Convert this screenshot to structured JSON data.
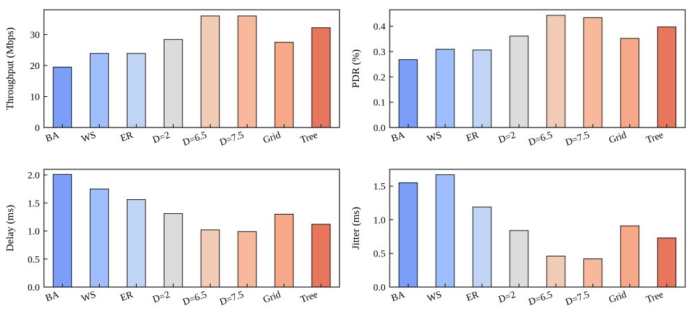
{
  "colors": [
    "#7b9ff9",
    "#9ebeff",
    "#c0d4f5",
    "#dddcdc",
    "#f2cbb7",
    "#f7b89c",
    "#f7a889",
    "#e8765c"
  ],
  "chart_data": [
    {
      "type": "bar",
      "categories": [
        "BA",
        "WS",
        "ER",
        "D=2",
        "D=6.5",
        "D=7.5",
        "Grid",
        "Tree"
      ],
      "values": [
        19.5,
        23.9,
        23.9,
        28.4,
        36.0,
        36.0,
        27.5,
        32.2
      ],
      "xlabel": "",
      "ylabel": "Throughput (Mbps)",
      "ylim": [
        0,
        38
      ],
      "yticks": [
        0,
        10,
        20,
        30
      ],
      "ytick_labels": [
        "0",
        "10",
        "20",
        "30"
      ]
    },
    {
      "type": "bar",
      "categories": [
        "BA",
        "WS",
        "ER",
        "D=2",
        "D=6.5",
        "D=7.5",
        "Grid",
        "Tree"
      ],
      "values": [
        0.268,
        0.309,
        0.306,
        0.361,
        0.443,
        0.434,
        0.352,
        0.397
      ],
      "xlabel": "",
      "ylabel": "PDR (%)",
      "ylim": [
        0,
        0.465
      ],
      "yticks": [
        0,
        0.1,
        0.2,
        0.3,
        0.4
      ],
      "ytick_labels": [
        "0.0",
        "0.1",
        "0.2",
        "0.3",
        "0.4"
      ]
    },
    {
      "type": "bar",
      "categories": [
        "BA",
        "WS",
        "ER",
        "D=2",
        "D=6.5",
        "D=7.5",
        "Grid",
        "Tree"
      ],
      "values": [
        2.01,
        1.75,
        1.56,
        1.31,
        1.02,
        0.99,
        1.3,
        1.12
      ],
      "xlabel": "",
      "ylabel": "Delay (ms)",
      "ylim": [
        0,
        2.1
      ],
      "yticks": [
        0,
        0.5,
        1.0,
        1.5,
        2.0
      ],
      "ytick_labels": [
        "0.0",
        "0.5",
        "1.0",
        "1.5",
        "2.0"
      ]
    },
    {
      "type": "bar",
      "categories": [
        "BA",
        "WS",
        "ER",
        "D=2",
        "D=6.5",
        "D=7.5",
        "Grid",
        "Tree"
      ],
      "values": [
        1.55,
        1.67,
        1.19,
        0.84,
        0.46,
        0.42,
        0.91,
        0.73
      ],
      "xlabel": "",
      "ylabel": "Jitter (ms)",
      "ylim": [
        0,
        1.75
      ],
      "yticks": [
        0,
        0.5,
        1.0,
        1.5
      ],
      "ytick_labels": [
        "0.0",
        "0.5",
        "1.0",
        "1.5"
      ]
    }
  ]
}
